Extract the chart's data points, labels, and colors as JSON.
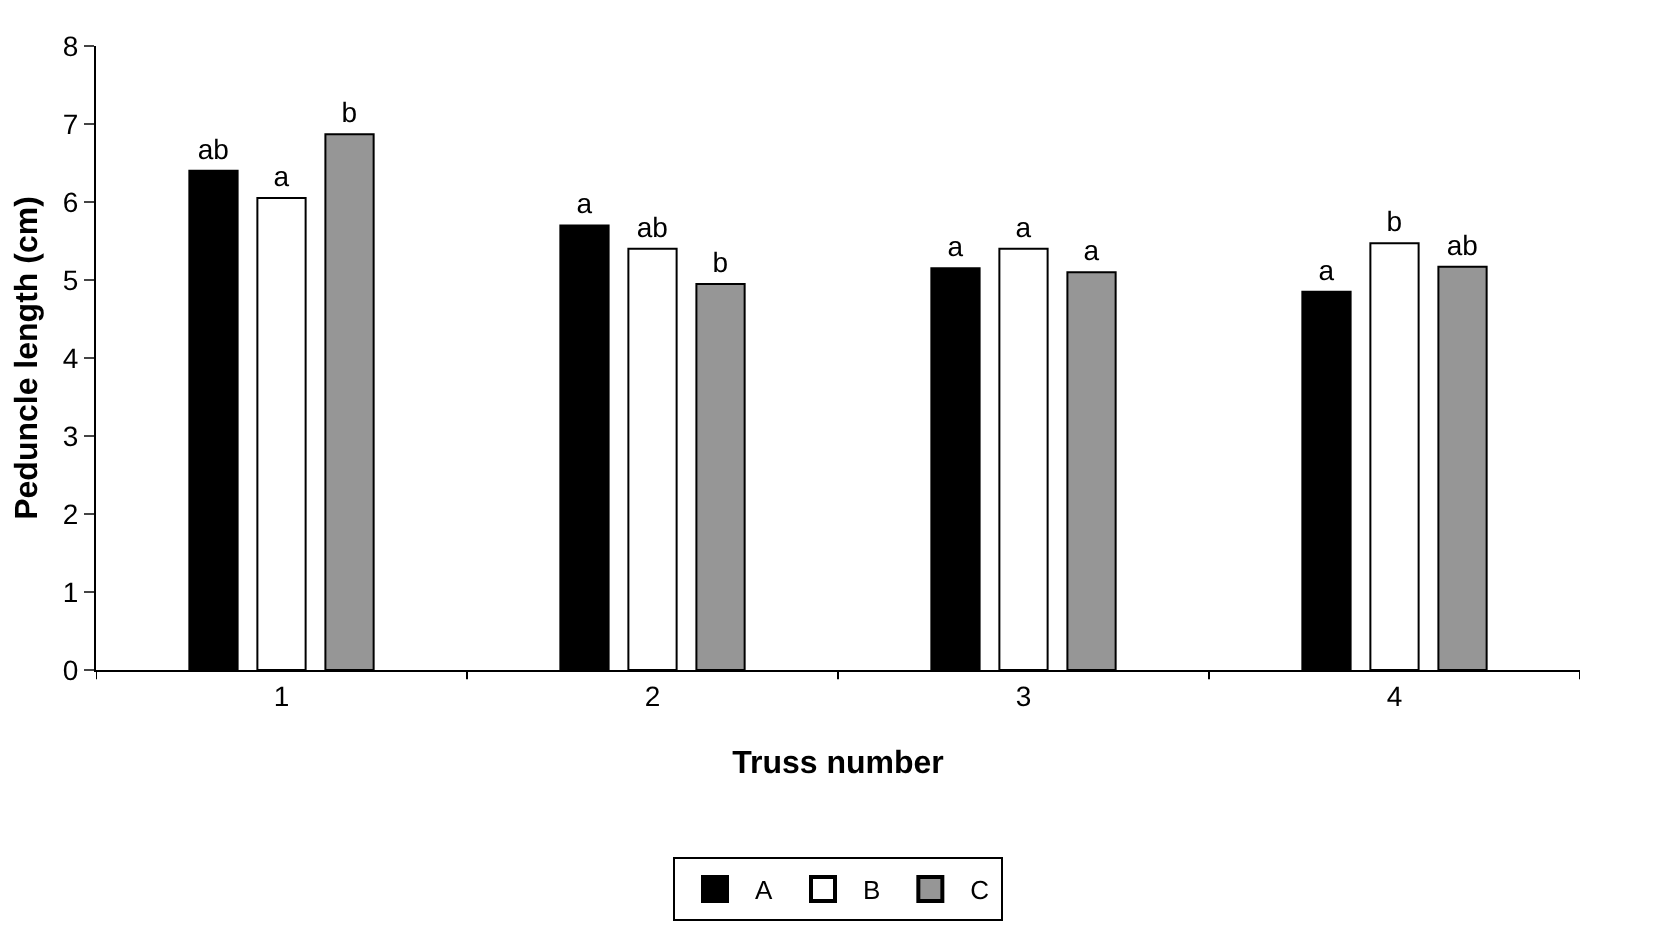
{
  "chart_data": {
    "type": "bar",
    "xlabel": "Truss number",
    "ylabel": "Peduncle length (cm)",
    "categories": [
      "1",
      "2",
      "3",
      "4"
    ],
    "series": [
      {
        "name": "A",
        "color": "#000000",
        "values": [
          6.4,
          5.7,
          5.15,
          4.85
        ],
        "value_labels": [
          "ab",
          "a",
          "a",
          "a"
        ]
      },
      {
        "name": "B",
        "color": "#ffffff",
        "values": [
          6.05,
          5.4,
          5.4,
          5.47
        ],
        "value_labels": [
          "a",
          "ab",
          "a",
          "b"
        ]
      },
      {
        "name": "C",
        "color": "#969696",
        "values": [
          6.87,
          4.95,
          5.1,
          5.17
        ],
        "value_labels": [
          "b",
          "b",
          "a",
          "ab"
        ]
      }
    ],
    "ylim": [
      0,
      8
    ],
    "yticks": [
      0,
      1,
      2,
      3,
      4,
      5,
      6,
      7,
      8
    ],
    "legend": "bottom"
  }
}
